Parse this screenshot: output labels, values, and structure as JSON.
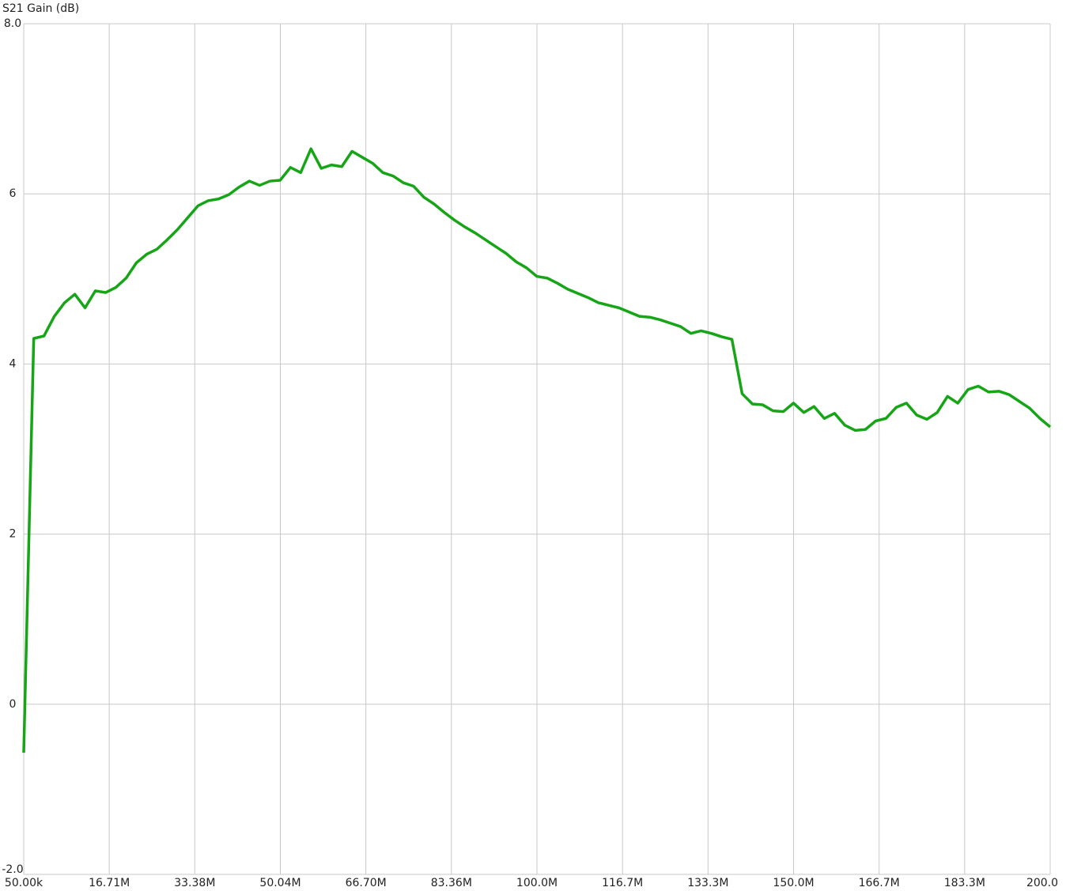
{
  "chart_data": {
    "type": "line",
    "title": "S21 Gain (dB)",
    "x": [
      0.05,
      1,
      2,
      4,
      6,
      8,
      10,
      12,
      14,
      16,
      18,
      20,
      22,
      24,
      26,
      28,
      30,
      32,
      34,
      36,
      38,
      40,
      42,
      44,
      46,
      48,
      50,
      52,
      54,
      56,
      58,
      60,
      62,
      64,
      66,
      68,
      70,
      72,
      74,
      76,
      78,
      80,
      82,
      84,
      86,
      88,
      90,
      92,
      94,
      96,
      98,
      100,
      102,
      104,
      106,
      108,
      110,
      112,
      114,
      116,
      118,
      120,
      122,
      124,
      126,
      128,
      130,
      132,
      134,
      136,
      138,
      140,
      142,
      144,
      146,
      148,
      150,
      152,
      154,
      156,
      158,
      160,
      162,
      164,
      166,
      168,
      170,
      172,
      174,
      176,
      178,
      180,
      182,
      184,
      186,
      188,
      190,
      192,
      194,
      196,
      198,
      200
    ],
    "series": [
      {
        "color": "#16a516",
        "values": [
          -0.57,
          1.8,
          4.3,
          4.33,
          4.56,
          4.72,
          4.82,
          4.66,
          4.86,
          4.84,
          4.9,
          5.01,
          5.19,
          5.29,
          5.35,
          5.46,
          5.58,
          5.72,
          5.86,
          5.92,
          5.94,
          5.99,
          6.08,
          6.15,
          6.1,
          6.15,
          6.16,
          6.31,
          6.25,
          6.53,
          6.3,
          6.34,
          6.32,
          6.5,
          6.43,
          6.36,
          6.25,
          6.21,
          6.13,
          6.09,
          5.96,
          5.88,
          5.78,
          5.69,
          5.61,
          5.54,
          5.46,
          5.38,
          5.3,
          5.2,
          5.13,
          5.03,
          5.01,
          4.95,
          4.88,
          4.83,
          4.78,
          4.72,
          4.69,
          4.66,
          4.61,
          4.56,
          4.55,
          4.52,
          4.48,
          4.44,
          4.36,
          4.39,
          4.36,
          4.32,
          4.29,
          3.65,
          3.53,
          3.52,
          3.45,
          3.44,
          3.54,
          3.43,
          3.5,
          3.36,
          3.42,
          3.28,
          3.22,
          3.23,
          3.33,
          3.36,
          3.49,
          3.54,
          3.4,
          3.35,
          3.43,
          3.62,
          3.54,
          3.7,
          3.74,
          3.67,
          3.68,
          3.64,
          3.56,
          3.48,
          3.36,
          3.26
        ]
      }
    ],
    "xlim": [
      0.05,
      200
    ],
    "xticks": [
      {
        "value": 0.05,
        "label": "50.00k"
      },
      {
        "value": 16.7125,
        "label": "16.71M"
      },
      {
        "value": 33.375,
        "label": "33.38M"
      },
      {
        "value": 50.0375,
        "label": "50.04M"
      },
      {
        "value": 66.7,
        "label": "66.70M"
      },
      {
        "value": 83.3625,
        "label": "83.36M"
      },
      {
        "value": 100.025,
        "label": "100.0M"
      },
      {
        "value": 116.6875,
        "label": "116.7M"
      },
      {
        "value": 133.35,
        "label": "133.3M"
      },
      {
        "value": 150.0125,
        "label": "150.0M"
      },
      {
        "value": 166.675,
        "label": "166.7M"
      },
      {
        "value": 183.3375,
        "label": "183.3M"
      },
      {
        "value": 200,
        "label": "200.0"
      }
    ],
    "ylim": [
      -2,
      8
    ],
    "yticks": [
      {
        "value": 8,
        "label": "8.0"
      },
      6,
      4,
      2,
      0,
      {
        "value": -2,
        "label": "-2.0"
      }
    ],
    "grid": true
  }
}
